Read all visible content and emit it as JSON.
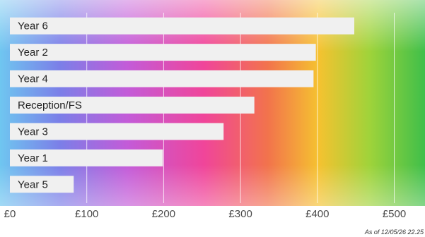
{
  "chart_data": {
    "type": "bar",
    "orientation": "horizontal",
    "categories": [
      "Year 6",
      "Year 2",
      "Year 4",
      "Reception/FS",
      "Year 3",
      "Year 1",
      "Year 5"
    ],
    "values": [
      448,
      398,
      395,
      318,
      278,
      199,
      83
    ],
    "x_ticks": [
      "£0",
      "£100",
      "£200",
      "£300",
      "£400",
      "£500"
    ],
    "xlim": [
      0,
      540
    ],
    "grid": true,
    "bar_color": "#f0f0f0"
  },
  "timestamp": "As of 12/05/26 22.25"
}
